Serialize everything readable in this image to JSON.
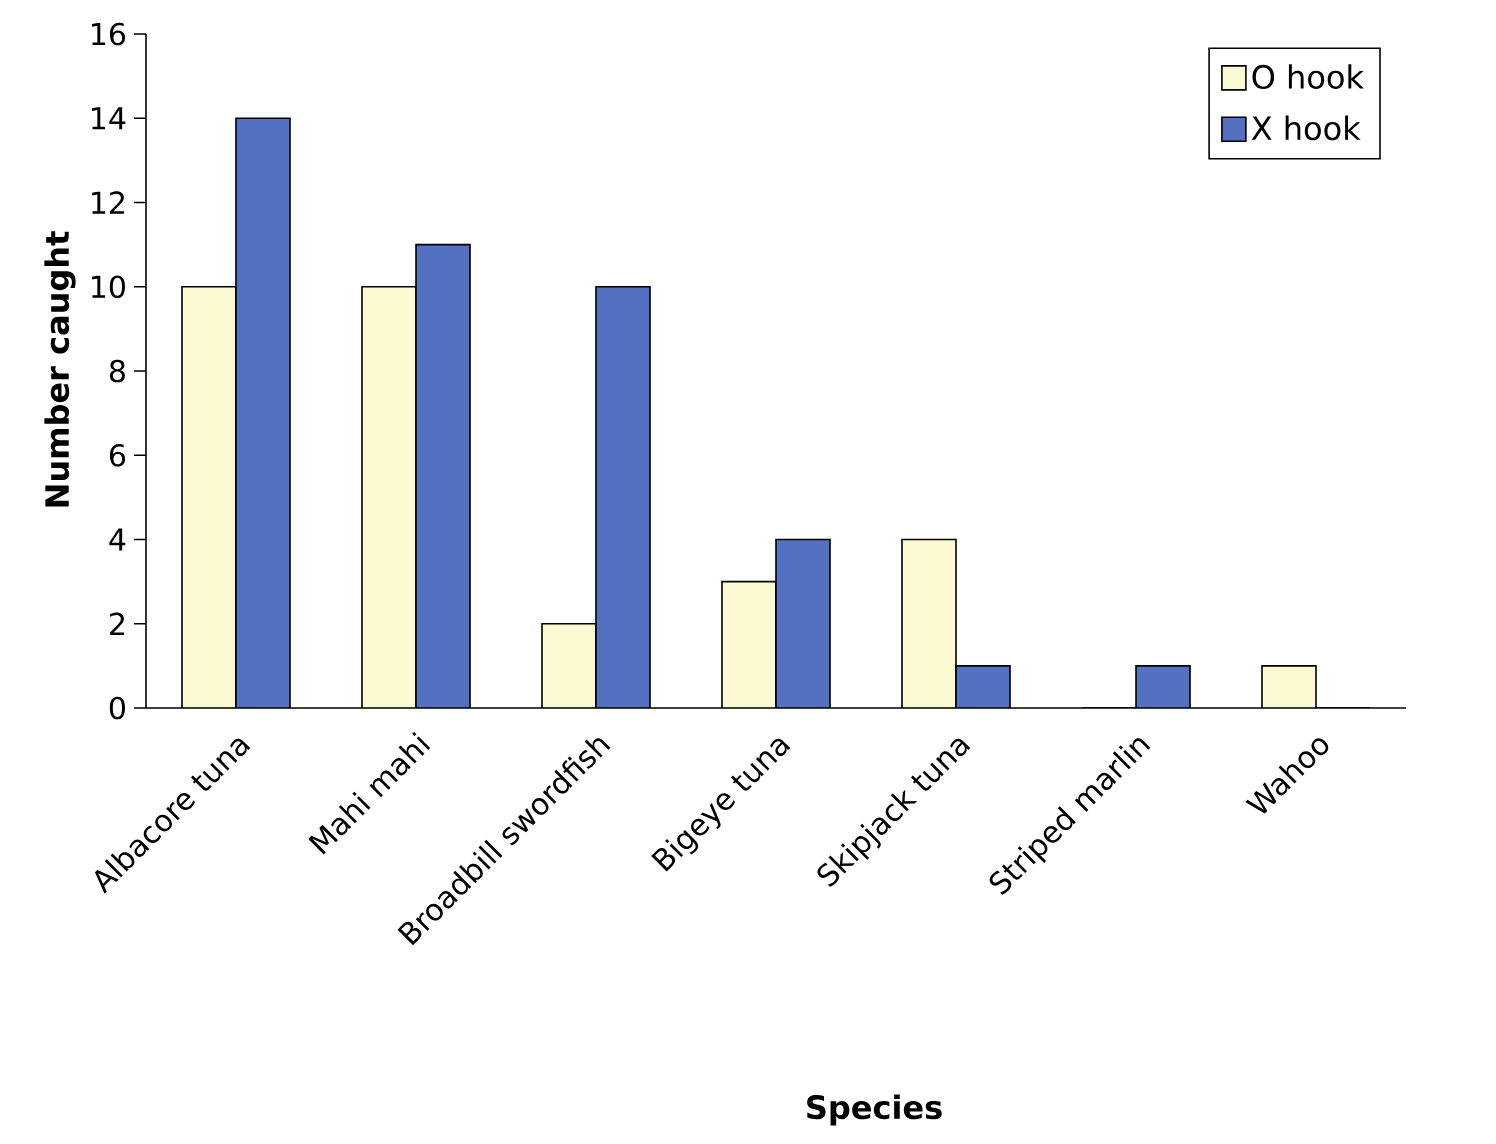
{
  "chart_data": {
    "type": "bar",
    "xlabel": "Species",
    "ylabel": "Number caught",
    "categories": [
      "Albacore tuna",
      "Mahi mahi",
      "Broadbill swordfish",
      "Bigeye tuna",
      "Skipjack tuna",
      "Striped marlin",
      "Wahoo"
    ],
    "series": [
      {
        "name": "O hook",
        "color": "#fcfad2",
        "values": [
          10,
          10,
          2,
          3,
          4,
          0,
          1
        ]
      },
      {
        "name": "X hook",
        "color": "#5470c0",
        "values": [
          14,
          11,
          10,
          4,
          1,
          1,
          0
        ]
      }
    ],
    "ylim": [
      0,
      16
    ],
    "yticks": [
      0,
      2,
      4,
      6,
      8,
      10,
      12,
      14,
      16
    ],
    "grid": false,
    "legend": "top right"
  }
}
